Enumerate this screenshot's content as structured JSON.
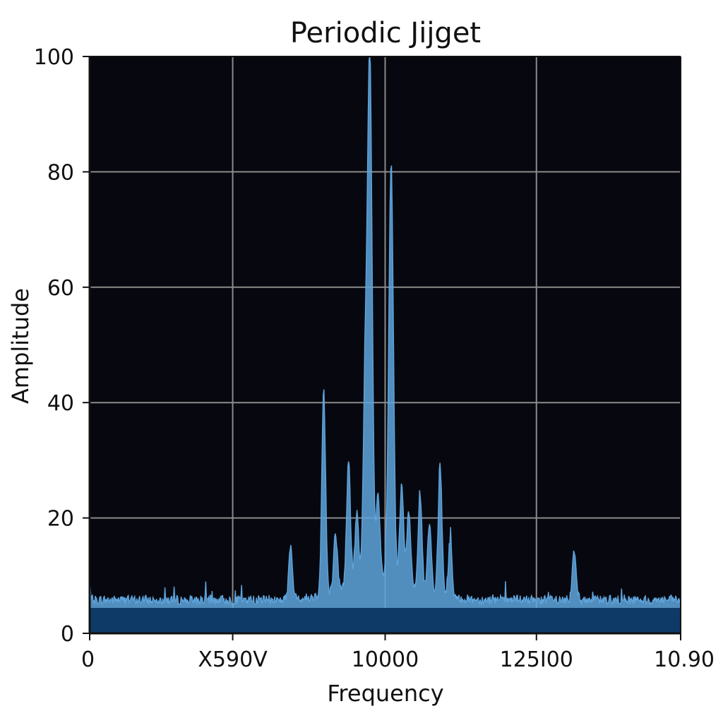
{
  "chart_data": {
    "type": "area",
    "title": "Periodic Jijget",
    "xlabel": "Frequency",
    "ylabel": "Amplitude",
    "ylim": [
      0,
      100
    ],
    "yticks": [
      0,
      20,
      40,
      60,
      80,
      100
    ],
    "xtick_labels": [
      "0",
      "X590V",
      "10000",
      "125I00",
      "10.90"
    ],
    "grid": true,
    "plot_background": "#07080f",
    "grid_color": "#8a8a8a",
    "fill_color": "#0d3a66",
    "line_color": "#5ea4dc",
    "noise_floor": 5,
    "peaks": [
      {
        "x": 0.396,
        "y": 36
      },
      {
        "x": 0.438,
        "y": 22
      },
      {
        "x": 0.466,
        "y": 33
      },
      {
        "x": 0.474,
        "y": 94
      },
      {
        "x": 0.51,
        "y": 73
      },
      {
        "x": 0.528,
        "y": 17
      },
      {
        "x": 0.559,
        "y": 17
      },
      {
        "x": 0.593,
        "y": 23
      },
      {
        "x": 0.416,
        "y": 10
      },
      {
        "x": 0.452,
        "y": 12
      },
      {
        "x": 0.488,
        "y": 14
      },
      {
        "x": 0.54,
        "y": 13
      },
      {
        "x": 0.575,
        "y": 12
      },
      {
        "x": 0.61,
        "y": 10
      },
      {
        "x": 0.34,
        "y": 9
      },
      {
        "x": 0.82,
        "y": 9
      }
    ]
  }
}
